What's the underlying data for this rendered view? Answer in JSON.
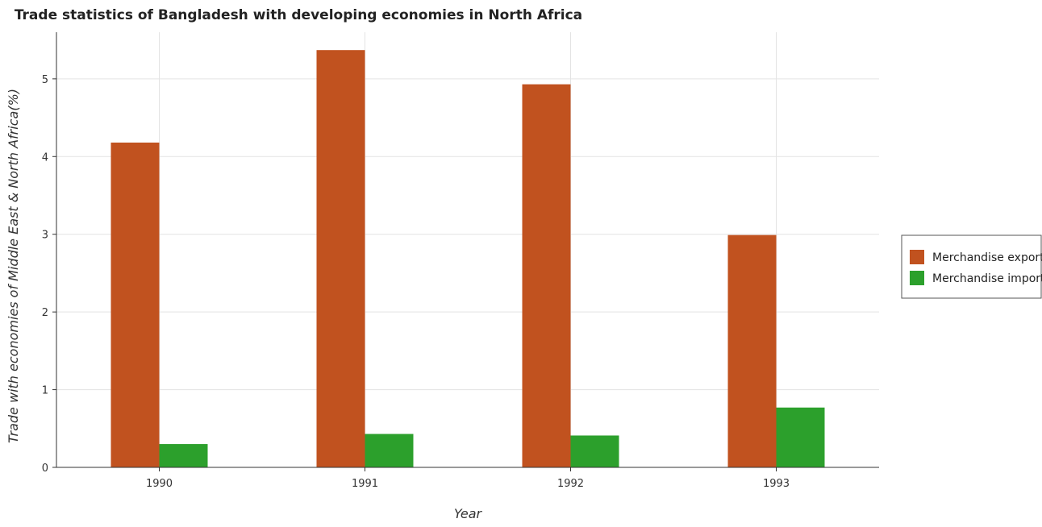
{
  "chart_data": {
    "type": "bar",
    "title": "Trade statistics of Bangladesh with developing economies in North Africa",
    "xlabel": "Year",
    "ylabel": "Trade with economies of Middle East & North Africa(%)",
    "categories": [
      "1990",
      "1991",
      "1992",
      "1993"
    ],
    "series": [
      {
        "name": "Merchandise exports",
        "color": "#c1521f",
        "values": [
          4.18,
          5.37,
          4.93,
          2.99
        ]
      },
      {
        "name": "Merchandise imports",
        "color": "#2ca02c",
        "values": [
          0.3,
          0.43,
          0.41,
          0.77
        ]
      }
    ],
    "ylim": [
      0,
      5.6
    ],
    "yticks": [
      "0",
      "1",
      "2",
      "3",
      "4",
      "5"
    ],
    "grid": true,
    "legend_position": "right"
  }
}
